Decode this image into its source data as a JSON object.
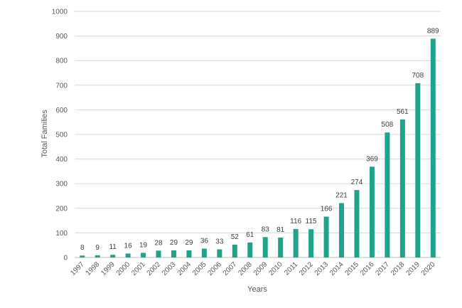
{
  "chart_data": {
    "type": "bar",
    "title": "",
    "xlabel": "Years",
    "ylabel": "Total Families",
    "categories": [
      "1997",
      "1998",
      "1999",
      "2000",
      "2001",
      "2002",
      "2003",
      "2004",
      "2005",
      "2006",
      "2007",
      "2008",
      "2009",
      "2010",
      "2011",
      "2012",
      "2013",
      "2014",
      "2015",
      "2016",
      "2017",
      "2018",
      "2019",
      "2020"
    ],
    "values": [
      8,
      9,
      11,
      16,
      19,
      28,
      29,
      29,
      36,
      33,
      52,
      61,
      83,
      81,
      116,
      115,
      166,
      221,
      274,
      369,
      508,
      561,
      708,
      889
    ],
    "yticks": [
      "0",
      "100",
      "200",
      "300",
      "400",
      "500",
      "600",
      "700",
      "800",
      "900",
      "1000"
    ],
    "ylim": [
      0,
      1000
    ],
    "grid": true,
    "legend": "none",
    "bar_color": "#1fa38a"
  }
}
